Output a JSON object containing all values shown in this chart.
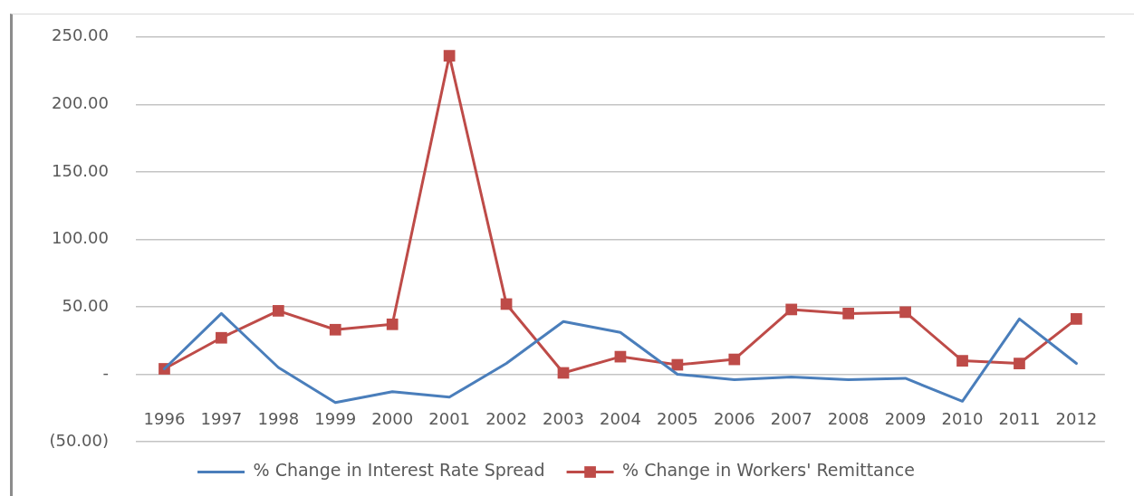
{
  "chart_data": {
    "type": "line",
    "categories": [
      "1996",
      "1997",
      "1998",
      "1999",
      "2000",
      "2001",
      "2002",
      "2003",
      "2004",
      "2005",
      "2006",
      "2007",
      "2008",
      "2009",
      "2010",
      "2011",
      "2012"
    ],
    "series": [
      {
        "name": "% Change in Interest Rate Spread",
        "color": "#4a7ebb",
        "marker": "none",
        "values": [
          4,
          45,
          5,
          -21,
          -13,
          -17,
          8,
          39,
          31,
          0,
          -4,
          -2,
          -4,
          -3,
          -20,
          41,
          8
        ]
      },
      {
        "name": "% Change in Workers' Remittance",
        "color": "#be4b48",
        "marker": "square",
        "values": [
          4,
          27,
          47,
          33,
          37,
          236,
          52,
          1,
          13,
          7,
          11,
          48,
          45,
          46,
          10,
          8,
          41
        ]
      }
    ],
    "ylim": [
      -50,
      250
    ],
    "yticks": [
      {
        "value": -50,
        "label": "(50.00)"
      },
      {
        "value": 0,
        "label": "-"
      },
      {
        "value": 50,
        "label": "50.00"
      },
      {
        "value": 100,
        "label": "100.00"
      },
      {
        "value": 150,
        "label": "150.00"
      },
      {
        "value": 200,
        "label": "200.00"
      },
      {
        "value": 250,
        "label": "250.00"
      }
    ],
    "grid": "y",
    "legend": "bottom"
  }
}
